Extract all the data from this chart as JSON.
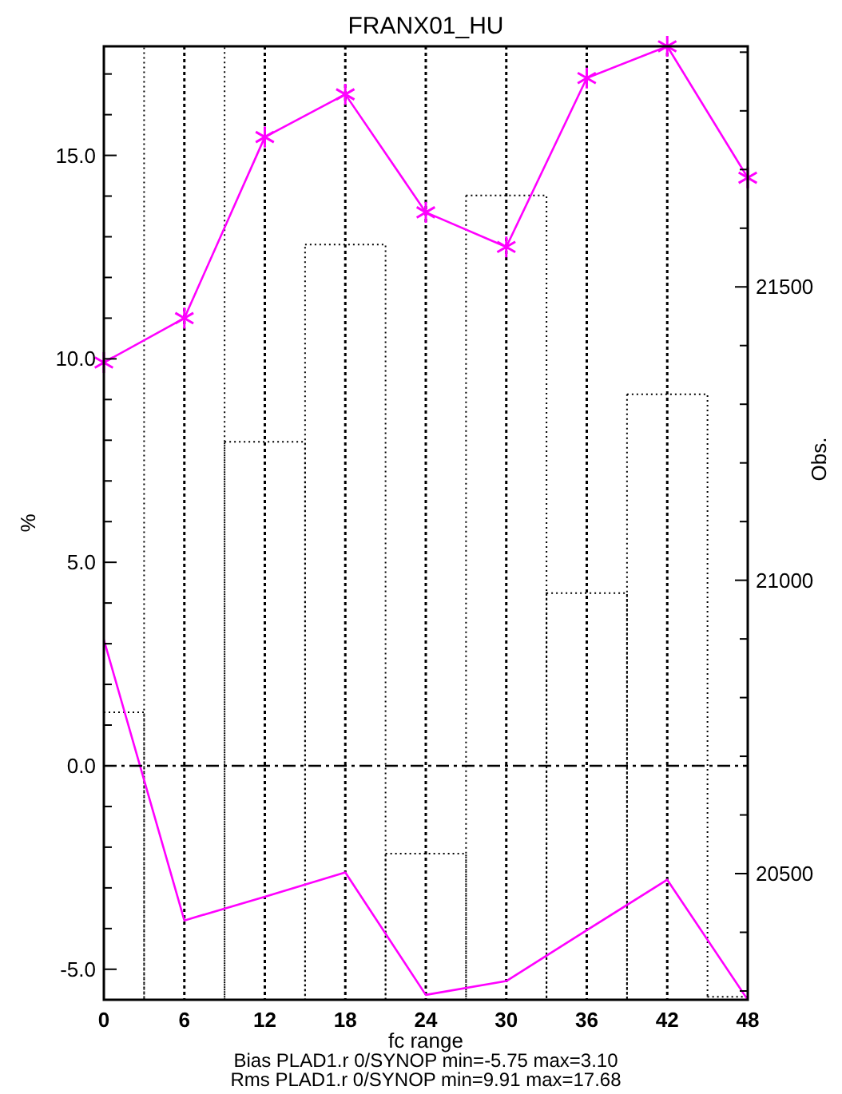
{
  "chart_data": {
    "type": "line",
    "title": "FRANX01_HU",
    "xlabel": "fc range",
    "ylabel": "%",
    "y2label": "Obs.",
    "x": [
      0,
      6,
      12,
      18,
      24,
      30,
      36,
      42,
      48
    ],
    "xlim": [
      0,
      48
    ],
    "xticks": [
      0,
      6,
      12,
      18,
      24,
      30,
      36,
      42,
      48
    ],
    "ylim": [
      -5.75,
      17.68
    ],
    "yticks": [
      {
        "value": -5,
        "label": "-5.0"
      },
      {
        "value": -4,
        "label": null
      },
      {
        "value": -3,
        "label": null
      },
      {
        "value": -2,
        "label": null
      },
      {
        "value": -1,
        "label": null
      },
      {
        "value": 0,
        "label": "0.0"
      },
      {
        "value": 1,
        "label": null
      },
      {
        "value": 2,
        "label": null
      },
      {
        "value": 3,
        "label": null
      },
      {
        "value": 4,
        "label": null
      },
      {
        "value": 5,
        "label": "5.0"
      },
      {
        "value": 6,
        "label": null
      },
      {
        "value": 7,
        "label": null
      },
      {
        "value": 8,
        "label": null
      },
      {
        "value": 9,
        "label": null
      },
      {
        "value": 10,
        "label": "10.0"
      },
      {
        "value": 11,
        "label": null
      },
      {
        "value": 12,
        "label": null
      },
      {
        "value": 13,
        "label": null
      },
      {
        "value": 14,
        "label": null
      },
      {
        "value": 15,
        "label": "15.0"
      },
      {
        "value": 16,
        "label": null
      },
      {
        "value": 17,
        "label": null
      }
    ],
    "y2lim": [
      20285,
      21910
    ],
    "y2ticks": [
      {
        "value": 20300,
        "label": null
      },
      {
        "value": 20400,
        "label": null
      },
      20500,
      {
        "value": 20600,
        "label": null
      },
      {
        "value": 20700,
        "label": null
      },
      {
        "value": 20800,
        "label": null
      },
      {
        "value": 20900,
        "label": null
      },
      21000,
      {
        "value": 21100,
        "label": null
      },
      {
        "value": 21200,
        "label": null
      },
      {
        "value": 21300,
        "label": null
      },
      {
        "value": 21400,
        "label": null
      },
      21500,
      {
        "value": 21600,
        "label": null
      },
      {
        "value": 21700,
        "label": null
      },
      {
        "value": 21800,
        "label": null
      },
      {
        "value": 21900,
        "label": null
      }
    ],
    "grid": "x",
    "series": [
      {
        "type": "histogram",
        "axis": "y2",
        "color": "#000000",
        "line_style": "dotted",
        "bins": [
          0,
          3,
          9,
          15,
          21,
          27,
          33,
          39,
          45,
          48
        ],
        "values": [
          20775,
          21910,
          21236,
          21572,
          20534,
          21656,
          20978,
          21317,
          20290
        ]
      },
      {
        "color": "#ff00ff",
        "marker": "cross",
        "line_style": "solid",
        "values": [
          9.91,
          11.0,
          15.45,
          16.5,
          13.6,
          12.75,
          16.9,
          17.68,
          14.45
        ]
      },
      {
        "color": "#ff00ff",
        "marker": "none",
        "line_style": "solid",
        "values": [
          3.1,
          -3.8,
          -3.22,
          -2.62,
          -5.63,
          -5.29,
          -4.04,
          -2.8,
          -5.75
        ]
      }
    ],
    "ref_lines": [
      {
        "axis": "y",
        "value": 0,
        "line_style": "dashdot",
        "color": "#000000"
      }
    ],
    "annotations": [
      "Bias PLAD1.r 0/SYNOP min=-5.75 max=3.10",
      "Rms PLAD1.r 0/SYNOP min=9.91 max=17.68"
    ]
  }
}
